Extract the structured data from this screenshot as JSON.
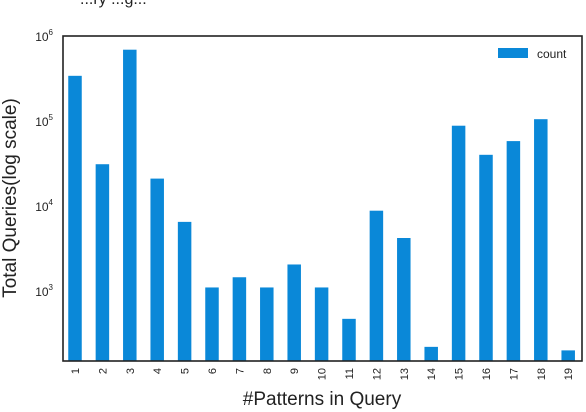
{
  "page": {
    "top_clip_text": "...ry ...g..."
  },
  "chart_data": {
    "type": "bar",
    "xlabel": "#Patterns in Query",
    "ylabel": "Total Queries(log scale)",
    "yscale": "log",
    "ylim": [
      150,
      1000000
    ],
    "yticks": [
      1000,
      10000,
      100000,
      1000000
    ],
    "ytick_labels": [
      {
        "base": "10",
        "exp": "3"
      },
      {
        "base": "10",
        "exp": "4"
      },
      {
        "base": "10",
        "exp": "5"
      },
      {
        "base": "10",
        "exp": "6"
      }
    ],
    "categories": [
      "1",
      "2",
      "3",
      "4",
      "5",
      "6",
      "7",
      "8",
      "9",
      "10",
      "11",
      "12",
      "13",
      "14",
      "15",
      "16",
      "17",
      "18",
      "19"
    ],
    "series": [
      {
        "name": "count",
        "color": "#0a88d8",
        "values": [
          340000,
          31000,
          690000,
          21000,
          6500,
          1100,
          1450,
          1100,
          2050,
          1100,
          470,
          8800,
          4200,
          220,
          88000,
          40000,
          58000,
          105000,
          200
        ]
      }
    ],
    "legend": {
      "position": "top-right",
      "entries": [
        "count"
      ]
    },
    "grid": false
  }
}
